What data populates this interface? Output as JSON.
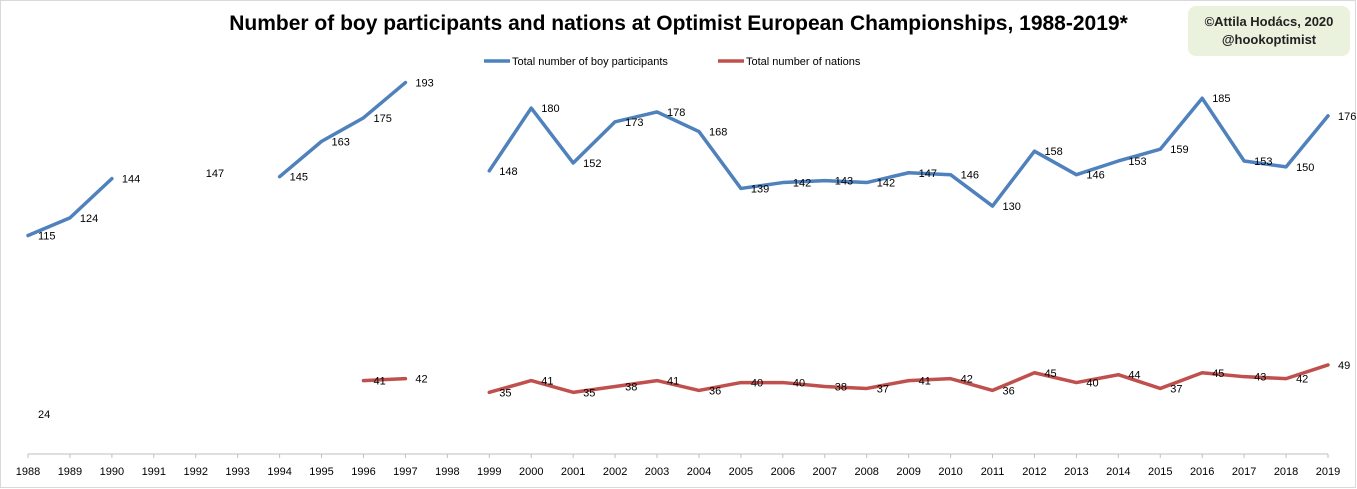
{
  "chart_data": {
    "type": "line",
    "title": "Number of boy participants and nations at Optimist European Championships, 1988-2019*",
    "credit": [
      "©Attila Hodács, 2020",
      "@hookoptimist"
    ],
    "categories": [
      "1988",
      "1989",
      "1990",
      "1991",
      "1992",
      "1993",
      "1994",
      "1995",
      "1996",
      "1997",
      "1998",
      "1999",
      "2000",
      "2001",
      "2002",
      "2003",
      "2004",
      "2005",
      "2006",
      "2007",
      "2008",
      "2009",
      "2010",
      "2011",
      "2012",
      "2013",
      "2014",
      "2015",
      "2016",
      "2017",
      "2018",
      "2019"
    ],
    "series": [
      {
        "name": "Total number of boy participants",
        "color": "#4f81bd",
        "values": [
          115,
          124,
          144,
          null,
          147,
          null,
          145,
          163,
          175,
          193,
          null,
          148,
          180,
          152,
          173,
          178,
          168,
          139,
          142,
          143,
          142,
          147,
          146,
          130,
          158,
          146,
          153,
          159,
          185,
          153,
          150,
          176
        ]
      },
      {
        "name": "Total number of nations",
        "color": "#c0504d",
        "values": [
          24,
          null,
          null,
          null,
          null,
          null,
          null,
          null,
          41,
          42,
          null,
          35,
          41,
          35,
          38,
          41,
          36,
          40,
          40,
          38,
          37,
          41,
          42,
          36,
          45,
          40,
          44,
          37,
          45,
          43,
          42,
          49
        ]
      }
    ],
    "ylim": [
      0,
      230
    ],
    "legend": "top-center",
    "grid": false
  }
}
